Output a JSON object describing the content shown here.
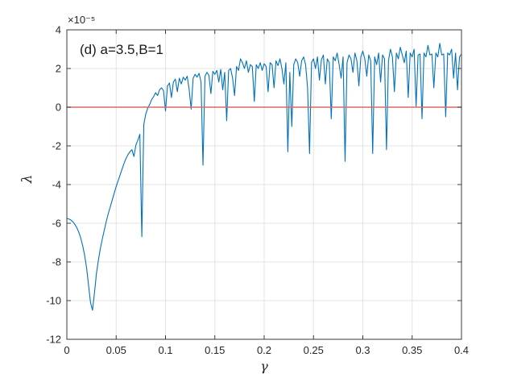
{
  "chart_data": {
    "type": "line",
    "title_annotation": "(d) a=3.5,B=1",
    "xlabel": "γ",
    "ylabel": "λ",
    "y_exponent": "×10⁻⁵",
    "value_scale": "1e-5",
    "xlim": [
      0,
      0.4
    ],
    "ylim": [
      -12,
      4
    ],
    "xticks": [
      0,
      0.05,
      0.1,
      0.15,
      0.2,
      0.25,
      0.3,
      0.35,
      0.4
    ],
    "xtick_labels": [
      "0",
      "0.05",
      "0.1",
      "0.15",
      "0.2",
      "0.25",
      "0.3",
      "0.35",
      "0.4"
    ],
    "yticks": [
      -12,
      -10,
      -8,
      -6,
      -4,
      -2,
      0,
      2,
      4
    ],
    "ytick_labels": [
      "-12",
      "-10",
      "-8",
      "-6",
      "-4",
      "-2",
      "0",
      "2",
      "4"
    ],
    "grid": true,
    "legend": "none",
    "colors": {
      "curve": "#0072BD",
      "zero_line": "#D96A6A",
      "grid": "#e3e3e3",
      "axis_box": "#3b3b3b",
      "tick_text": "#262626"
    },
    "series": [
      {
        "name": "lyapunov-exponent-curve",
        "type": "sampled",
        "x_start": 0,
        "x_step": 0.002,
        "values": [
          -5.75,
          -5.78,
          -5.83,
          -5.92,
          -6.05,
          -6.22,
          -6.45,
          -6.75,
          -7.15,
          -7.65,
          -8.3,
          -9.2,
          -10.1,
          -10.5,
          -9.6,
          -8.6,
          -7.9,
          -7.3,
          -6.8,
          -6.35,
          -5.9,
          -5.5,
          -5.15,
          -4.8,
          -4.45,
          -4.1,
          -3.8,
          -3.5,
          -3.2,
          -2.9,
          -2.65,
          -2.45,
          -2.3,
          -2.2,
          -2.55,
          -1.95,
          -1.7,
          -1.4,
          -6.7,
          -0.9,
          -0.35,
          -0.05,
          0.15,
          0.4,
          0.55,
          0.75,
          0.6,
          0.9,
          1.0,
          0.85,
          -0.2,
          1.1,
          1.25,
          0.5,
          1.3,
          1.45,
          0.8,
          1.5,
          1.2,
          1.55,
          1.4,
          1.6,
          0.9,
          -0.1,
          1.5,
          1.7,
          1.55,
          1.75,
          1.3,
          -3.0,
          1.6,
          1.8,
          1.65,
          0.7,
          1.85,
          1.7,
          1.9,
          1.3,
          1.95,
          0.9,
          1.8,
          -0.7,
          1.9,
          2.0,
          1.5,
          0.6,
          2.1,
          1.9,
          2.5,
          2.3,
          2.0,
          2.4,
          1.8,
          2.2,
          2.1,
          0.3,
          2.2,
          2.0,
          2.3,
          1.9,
          2.25,
          2.1,
          0.8,
          2.3,
          2.2,
          1.0,
          2.4,
          2.15,
          2.5,
          2.0,
          1.2,
          2.3,
          -2.3,
          1.8,
          -1.0,
          2.2,
          2.5,
          2.3,
          1.6,
          2.4,
          2.6,
          2.2,
          1.0,
          -2.4,
          2.3,
          2.5,
          2.0,
          2.6,
          1.4,
          2.45,
          2.7,
          1.2,
          2.5,
          2.3,
          -0.6,
          2.6,
          2.4,
          2.8,
          2.2,
          1.5,
          2.6,
          -2.8,
          2.3,
          2.7,
          2.5,
          1.8,
          2.8,
          2.4,
          1.1,
          2.6,
          2.9,
          2.5,
          1.6,
          2.7,
          2.4,
          -2.4,
          2.6,
          2.2,
          2.8,
          1.3,
          2.7,
          2.5,
          -2.2,
          2.4,
          3.0,
          2.6,
          0.8,
          2.8,
          2.5,
          3.1,
          2.7,
          2.3,
          2.9,
          0.5,
          2.8,
          2.6,
          3.0,
          0.05,
          2.7,
          2.75,
          -0.6,
          2.8,
          2.6,
          3.2,
          2.7,
          2.75,
          1.0,
          2.8,
          2.6,
          3.3,
          2.7,
          2.75,
          -0.5,
          2.8,
          2.7,
          3.0,
          1.5,
          2.8,
          0.9,
          2.6,
          2.75
        ]
      },
      {
        "name": "zero-reference-line",
        "type": "explicit",
        "x": [
          0,
          0.4
        ],
        "values": [
          0,
          0
        ]
      }
    ]
  }
}
